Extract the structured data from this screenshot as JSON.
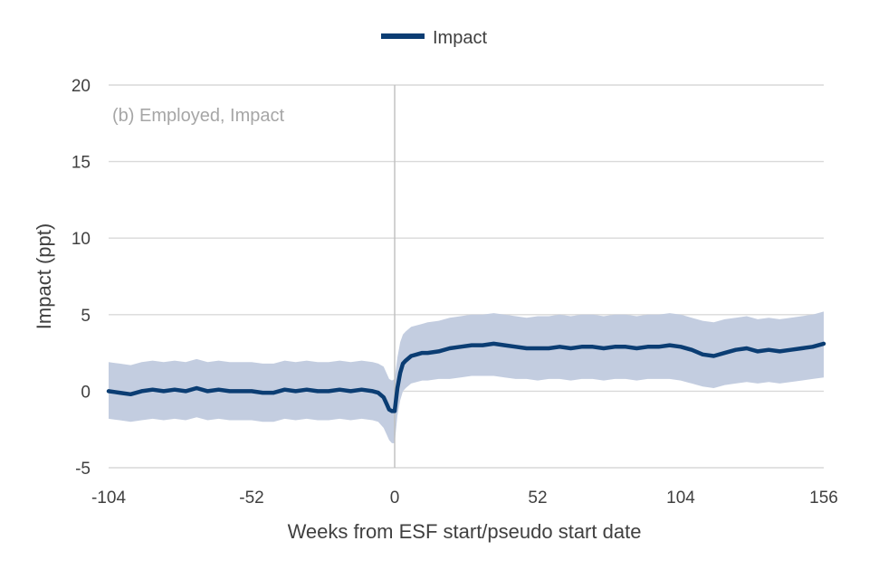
{
  "chart_data": {
    "type": "line",
    "title": "",
    "panel_label": "(b) Employed, Impact",
    "xlabel": "Weeks from ESF start/pseudo start date",
    "ylabel": "Impact (ppt)",
    "xlim": [
      -104,
      156
    ],
    "ylim": [
      -5,
      20
    ],
    "x_ticks": [
      -104,
      -52,
      0,
      52,
      104,
      156
    ],
    "y_ticks": [
      -5,
      0,
      5,
      10,
      15,
      20
    ],
    "grid": "horizontal",
    "legend_position": "top-center",
    "colors": {
      "line": "#0b3d73",
      "band": "#c3cde0",
      "grid": "#d9d9d9",
      "zero_vline": "#bfbfbf"
    },
    "series": [
      {
        "name": "Impact",
        "x": [
          -104,
          -100,
          -96,
          -92,
          -88,
          -84,
          -80,
          -76,
          -72,
          -68,
          -64,
          -60,
          -56,
          -52,
          -48,
          -44,
          -40,
          -36,
          -32,
          -28,
          -24,
          -20,
          -16,
          -12,
          -8,
          -6,
          -4,
          -3,
          -2,
          -1,
          0,
          1,
          2,
          3,
          4,
          6,
          8,
          10,
          12,
          16,
          20,
          24,
          28,
          32,
          36,
          40,
          44,
          48,
          52,
          56,
          60,
          64,
          68,
          72,
          76,
          80,
          84,
          88,
          92,
          96,
          100,
          104,
          108,
          112,
          116,
          120,
          124,
          128,
          132,
          136,
          140,
          144,
          148,
          152,
          156
        ],
        "values": [
          0.0,
          -0.1,
          -0.2,
          0.0,
          0.1,
          0.0,
          0.1,
          0.0,
          0.2,
          0.0,
          0.1,
          0.0,
          0.0,
          0.0,
          -0.1,
          -0.1,
          0.1,
          0.0,
          0.1,
          0.0,
          0.0,
          0.1,
          0.0,
          0.1,
          0.0,
          -0.1,
          -0.4,
          -0.8,
          -1.2,
          -1.3,
          -1.3,
          0.2,
          1.2,
          1.8,
          2.0,
          2.3,
          2.4,
          2.5,
          2.5,
          2.6,
          2.8,
          2.9,
          3.0,
          3.0,
          3.1,
          3.0,
          2.9,
          2.8,
          2.8,
          2.8,
          2.9,
          2.8,
          2.9,
          2.9,
          2.8,
          2.9,
          2.9,
          2.8,
          2.9,
          2.9,
          3.0,
          2.9,
          2.7,
          2.4,
          2.3,
          2.5,
          2.7,
          2.8,
          2.6,
          2.7,
          2.6,
          2.7,
          2.8,
          2.9,
          3.1
        ]
      }
    ],
    "confidence_band": {
      "lower": [
        -1.8,
        -1.9,
        -2.0,
        -1.9,
        -1.8,
        -1.9,
        -1.8,
        -1.9,
        -1.7,
        -1.9,
        -1.8,
        -1.9,
        -1.9,
        -1.9,
        -2.0,
        -2.0,
        -1.8,
        -1.9,
        -1.8,
        -1.9,
        -1.9,
        -1.8,
        -1.9,
        -1.8,
        -1.9,
        -2.0,
        -2.4,
        -2.8,
        -3.2,
        -3.4,
        -3.4,
        -1.6,
        -0.6,
        0.0,
        0.2,
        0.5,
        0.6,
        0.7,
        0.7,
        0.8,
        0.8,
        0.9,
        1.0,
        1.0,
        1.0,
        0.9,
        0.8,
        0.8,
        0.7,
        0.8,
        0.8,
        0.7,
        0.8,
        0.8,
        0.7,
        0.8,
        0.8,
        0.7,
        0.8,
        0.8,
        0.8,
        0.7,
        0.5,
        0.3,
        0.2,
        0.4,
        0.5,
        0.6,
        0.5,
        0.6,
        0.5,
        0.6,
        0.7,
        0.8,
        0.9
      ],
      "upper": [
        1.9,
        1.8,
        1.7,
        1.9,
        2.0,
        1.9,
        2.0,
        1.9,
        2.1,
        1.9,
        2.0,
        1.9,
        1.9,
        1.9,
        1.8,
        1.8,
        2.0,
        1.9,
        2.0,
        1.9,
        1.9,
        2.0,
        1.9,
        2.0,
        1.9,
        1.8,
        1.6,
        1.2,
        0.8,
        0.7,
        0.8,
        2.2,
        3.2,
        3.7,
        3.9,
        4.2,
        4.3,
        4.4,
        4.5,
        4.6,
        4.8,
        4.9,
        5.0,
        5.0,
        5.1,
        5.0,
        4.9,
        4.8,
        4.9,
        4.9,
        5.0,
        4.9,
        5.0,
        5.0,
        4.9,
        5.0,
        5.0,
        4.9,
        5.0,
        5.0,
        5.1,
        5.0,
        4.8,
        4.6,
        4.5,
        4.7,
        4.8,
        4.9,
        4.7,
        4.8,
        4.7,
        4.8,
        4.9,
        5.0,
        5.2
      ]
    }
  }
}
